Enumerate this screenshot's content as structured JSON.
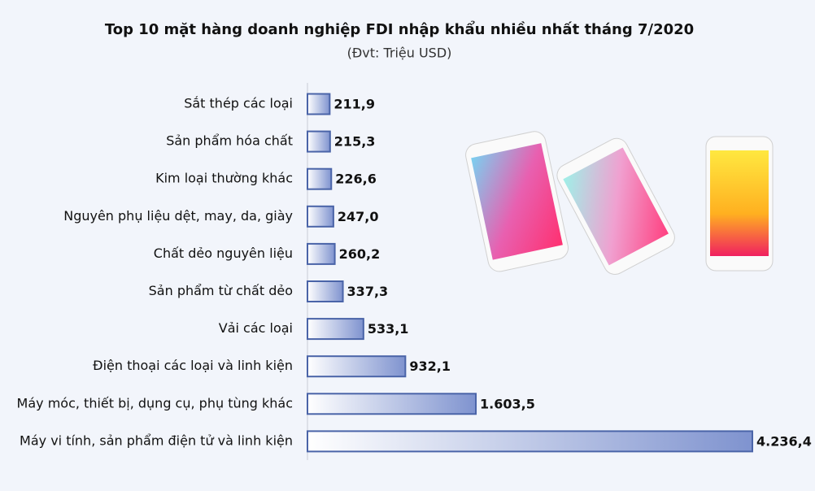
{
  "chart_data": {
    "type": "bar",
    "orientation": "horizontal",
    "title": "Top 10 mặt hàng doanh nghiệp FDI nhập khẩu nhiều nhất tháng 7/2020",
    "subtitle": "(Đvt: Triệu USD)",
    "categories": [
      "Sắt thép các loại",
      "Sản phẩm hóa chất",
      "Kim loại thường khác",
      "Nguyên phụ liệu dệt, may, da, giày",
      "Chất dẻo nguyên liệu",
      "Sản phẩm từ chất dẻo",
      "Vải các loại",
      "Điện thoại các loại và linh kiện",
      "Máy móc, thiết bị, dụng cụ, phụ tùng khác",
      "Máy vi tính, sản phẩm điện tử và linh kiện"
    ],
    "values": [
      211.9,
      215.3,
      226.6,
      247.0,
      260.2,
      337.3,
      533.1,
      932.1,
      1603.5,
      4236.4
    ],
    "value_labels": [
      "211,9",
      "215,3",
      "226,6",
      "247,0",
      "260,2",
      "337,3",
      "533,1",
      "932,1",
      "1.603,5",
      "4.236,4"
    ],
    "color": "#7f93cf"
  }
}
